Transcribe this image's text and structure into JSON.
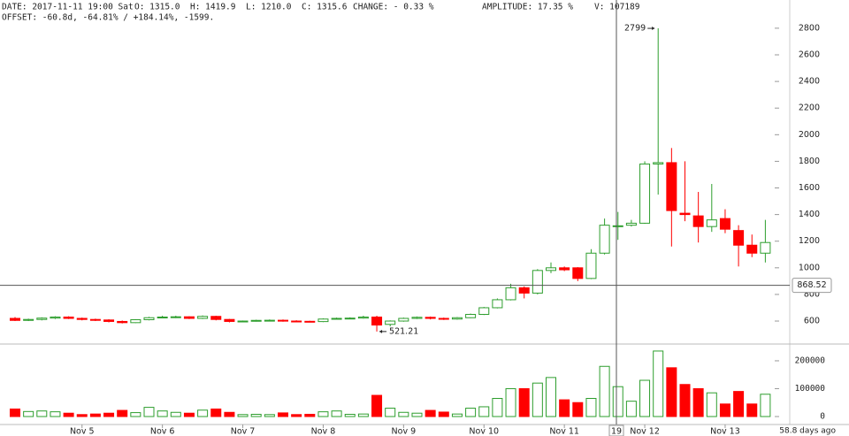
{
  "header": {
    "line1": [
      "DATE: 2017-11-11 19:00 Sat",
      "O: 1315.0",
      "H: 1419.9",
      "L: 1210.0",
      "C: 1315.6",
      "CHANGE: - 0.33 %",
      "AMPLITUDE: 17.35 %",
      "V: 107189"
    ],
    "line2": "OFFSET: -60.8d, -64.81% / +184.14%, -1599."
  },
  "chart_data": {
    "type": "candlestick",
    "categories": [
      null,
      null,
      null,
      null,
      null,
      "Nov 5",
      null,
      null,
      null,
      null,
      null,
      "Nov 6",
      null,
      null,
      null,
      null,
      null,
      "Nov 7",
      null,
      null,
      null,
      null,
      null,
      "Nov 8",
      null,
      null,
      null,
      null,
      null,
      "Nov 9",
      null,
      null,
      null,
      null,
      null,
      "Nov 10",
      null,
      null,
      null,
      null,
      null,
      "Nov 11",
      null,
      null,
      null,
      null,
      null,
      "Nov 12",
      null,
      null,
      null,
      null,
      null,
      "Nov 13",
      null,
      null,
      null
    ],
    "open": [
      620,
      605,
      612,
      622,
      630,
      620,
      612,
      608,
      597,
      588,
      610,
      625,
      628,
      632,
      620,
      635,
      612,
      597,
      600,
      605,
      606,
      600,
      598,
      596,
      615,
      620,
      622,
      630,
      575,
      600,
      620,
      628,
      620,
      615,
      625,
      650,
      700,
      760,
      850,
      810,
      980,
      1000,
      1000,
      920,
      1110,
      1315,
      1320,
      1335,
      1780,
      1790,
      1410,
      1390,
      1310,
      1370,
      1280,
      1170,
      1110
    ],
    "high": [
      630,
      618,
      628,
      636,
      636,
      626,
      618,
      614,
      604,
      614,
      632,
      640,
      640,
      636,
      642,
      640,
      616,
      604,
      610,
      612,
      612,
      606,
      602,
      620,
      626,
      628,
      640,
      640,
      605,
      626,
      634,
      634,
      626,
      630,
      656,
      706,
      770,
      880,
      860,
      990,
      1040,
      1010,
      1005,
      1140,
      1370,
      1419.9,
      1360,
      1800,
      2799,
      1900,
      1800,
      1570,
      1630,
      1440,
      1320,
      1250,
      1360
    ],
    "low": [
      600,
      600,
      605,
      615,
      615,
      605,
      600,
      590,
      582,
      585,
      605,
      620,
      622,
      615,
      615,
      605,
      590,
      592,
      596,
      600,
      595,
      592,
      590,
      592,
      610,
      615,
      618,
      521.21,
      560,
      595,
      615,
      612,
      608,
      610,
      622,
      645,
      695,
      755,
      770,
      800,
      960,
      975,
      900,
      915,
      1100,
      1210,
      1310,
      1330,
      1550,
      1160,
      1350,
      1190,
      1270,
      1260,
      1010,
      1080,
      1040
    ],
    "close": [
      605,
      612,
      622,
      630,
      620,
      612,
      608,
      597,
      588,
      610,
      625,
      630,
      632,
      620,
      635,
      612,
      597,
      600,
      605,
      606,
      600,
      598,
      596,
      615,
      620,
      622,
      630,
      570,
      600,
      620,
      628,
      620,
      615,
      625,
      650,
      700,
      760,
      850,
      810,
      980,
      1000,
      985,
      920,
      1110,
      1320,
      1315.6,
      1335,
      1780,
      1790,
      1430,
      1400,
      1310,
      1360,
      1290,
      1170,
      1110,
      1190
    ],
    "volume": [
      27000,
      18000,
      20000,
      17000,
      12000,
      7000,
      9000,
      12000,
      22000,
      14000,
      33000,
      20000,
      15000,
      12000,
      23000,
      27000,
      15000,
      7000,
      8000,
      7000,
      13000,
      7000,
      8000,
      17000,
      20000,
      8000,
      9000,
      76000,
      30000,
      15000,
      12000,
      22000,
      16000,
      9000,
      30000,
      35000,
      65000,
      100000,
      100000,
      120000,
      140000,
      60000,
      50000,
      65000,
      180000,
      107189,
      55000,
      130000,
      235000,
      175000,
      115000,
      100000,
      85000,
      45000,
      90000,
      45000,
      80000
    ],
    "up_color": "#2e9e2e",
    "down_color": "#ff0000",
    "ylim": [
      434,
      3012
    ],
    "yticks": [
      600,
      800,
      1000,
      1200,
      1400,
      1600,
      1800,
      2000,
      2200,
      2400,
      2600,
      2800
    ],
    "volume_ylim": [
      -28600,
      257000
    ],
    "volume_yticks": [
      0,
      100000,
      200000
    ],
    "crosshair": {
      "price": 868.52,
      "x_label": "19"
    },
    "footer": "58.8 days ago"
  }
}
